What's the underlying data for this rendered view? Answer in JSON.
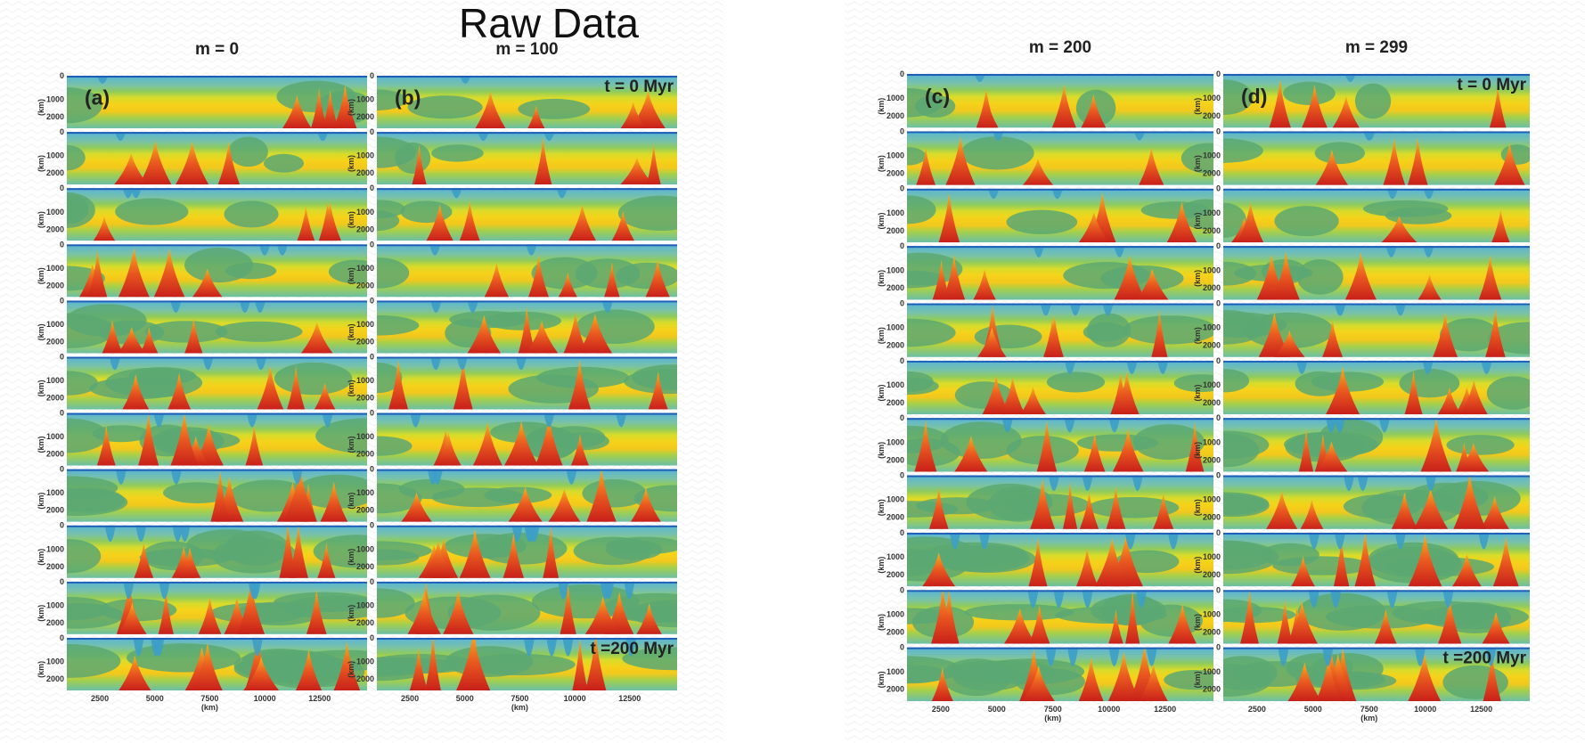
{
  "title": "Raw Data",
  "panels": [
    {
      "header": "m = 0",
      "letter": "(a)"
    },
    {
      "header": "m = 100",
      "letter": "(b)"
    },
    {
      "header": "m = 200",
      "letter": "(c)"
    },
    {
      "header": "m = 299",
      "letter": "(d)"
    }
  ],
  "time_labels": {
    "start": "t = 0 Myr",
    "end": "t =200 Myr"
  },
  "y_axis": {
    "label": "(km)",
    "ticks": [
      "0",
      "1000",
      "2000"
    ]
  },
  "x_axis": {
    "label": "(km)",
    "ticks": [
      "2500",
      "5000",
      "7500",
      "10000",
      "12500"
    ]
  }
}
